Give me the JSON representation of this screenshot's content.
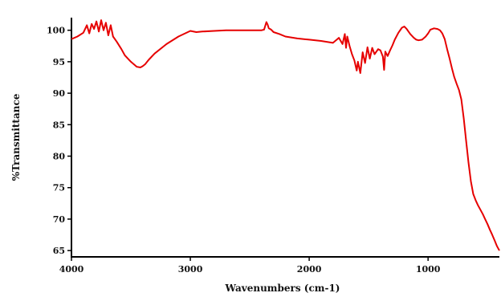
{
  "chart_data": {
    "type": "line",
    "title": "",
    "xlabel": "Wavenumbers (cm-1)",
    "ylabel": "%Transmittance",
    "xlim": [
      4000,
      400
    ],
    "ylim": [
      64,
      102
    ],
    "x_reversed": true,
    "grid": false,
    "x_ticks": [
      4000,
      3000,
      2000,
      1000
    ],
    "x_tick_labels": [
      "4000",
      "3000",
      "2000",
      "1000"
    ],
    "y_ticks": [
      65,
      70,
      75,
      80,
      85,
      90,
      95,
      100
    ],
    "y_tick_labels": [
      "65",
      "70",
      "75",
      "80",
      "85",
      "90",
      "95",
      "100"
    ],
    "series": [
      {
        "color": "#e60000",
        "x": [
          4000,
          3950,
          3900,
          3870,
          3850,
          3830,
          3810,
          3790,
          3770,
          3750,
          3730,
          3710,
          3690,
          3670,
          3650,
          3620,
          3580,
          3550,
          3500,
          3450,
          3420,
          3400,
          3380,
          3350,
          3300,
          3200,
          3100,
          3000,
          2950,
          2900,
          2800,
          2700,
          2600,
          2500,
          2400,
          2380,
          2360,
          2350,
          2340,
          2320,
          2300,
          2250,
          2200,
          2100,
          2000,
          1900,
          1800,
          1750,
          1720,
          1700,
          1690,
          1680,
          1660,
          1640,
          1620,
          1600,
          1590,
          1570,
          1550,
          1530,
          1510,
          1490,
          1470,
          1450,
          1420,
          1400,
          1380,
          1370,
          1360,
          1340,
          1320,
          1300,
          1280,
          1250,
          1220,
          1200,
          1180,
          1150,
          1120,
          1100,
          1080,
          1050,
          1020,
          1000,
          980,
          950,
          920,
          900,
          880,
          860,
          840,
          820,
          800,
          780,
          760,
          740,
          720,
          700,
          680,
          660,
          640,
          620,
          600,
          580,
          560,
          540,
          520,
          500,
          480,
          460,
          440,
          420,
          400
        ],
        "y": [
          98.6,
          99.0,
          99.6,
          100.8,
          99.5,
          101.0,
          100.2,
          101.4,
          99.8,
          101.6,
          100.0,
          101.2,
          99.2,
          100.8,
          99.0,
          98.2,
          97.0,
          96.0,
          95.0,
          94.2,
          94.1,
          94.3,
          94.6,
          95.3,
          96.3,
          97.8,
          99.0,
          99.9,
          99.7,
          99.8,
          99.9,
          100.0,
          100.0,
          100.0,
          100.0,
          100.1,
          101.3,
          100.9,
          100.3,
          100.1,
          99.7,
          99.4,
          99.0,
          98.7,
          98.5,
          98.3,
          98.0,
          98.8,
          97.8,
          99.4,
          97.2,
          99.0,
          97.5,
          96.2,
          95.2,
          93.6,
          95.0,
          93.2,
          96.5,
          94.8,
          97.3,
          95.5,
          97.2,
          96.2,
          97.0,
          96.8,
          95.8,
          93.7,
          96.6,
          95.9,
          96.8,
          97.6,
          98.5,
          99.6,
          100.4,
          100.6,
          100.2,
          99.4,
          98.8,
          98.5,
          98.4,
          98.5,
          99.0,
          99.5,
          100.1,
          100.3,
          100.2,
          100.0,
          99.5,
          98.6,
          97.0,
          95.6,
          94.0,
          92.6,
          91.5,
          90.5,
          89.0,
          86.0,
          82.5,
          79.0,
          76.0,
          74.0,
          73.0,
          72.2,
          71.5,
          70.8,
          70.0,
          69.2,
          68.3,
          67.5,
          66.6,
          65.7,
          65.0
        ]
      }
    ]
  }
}
